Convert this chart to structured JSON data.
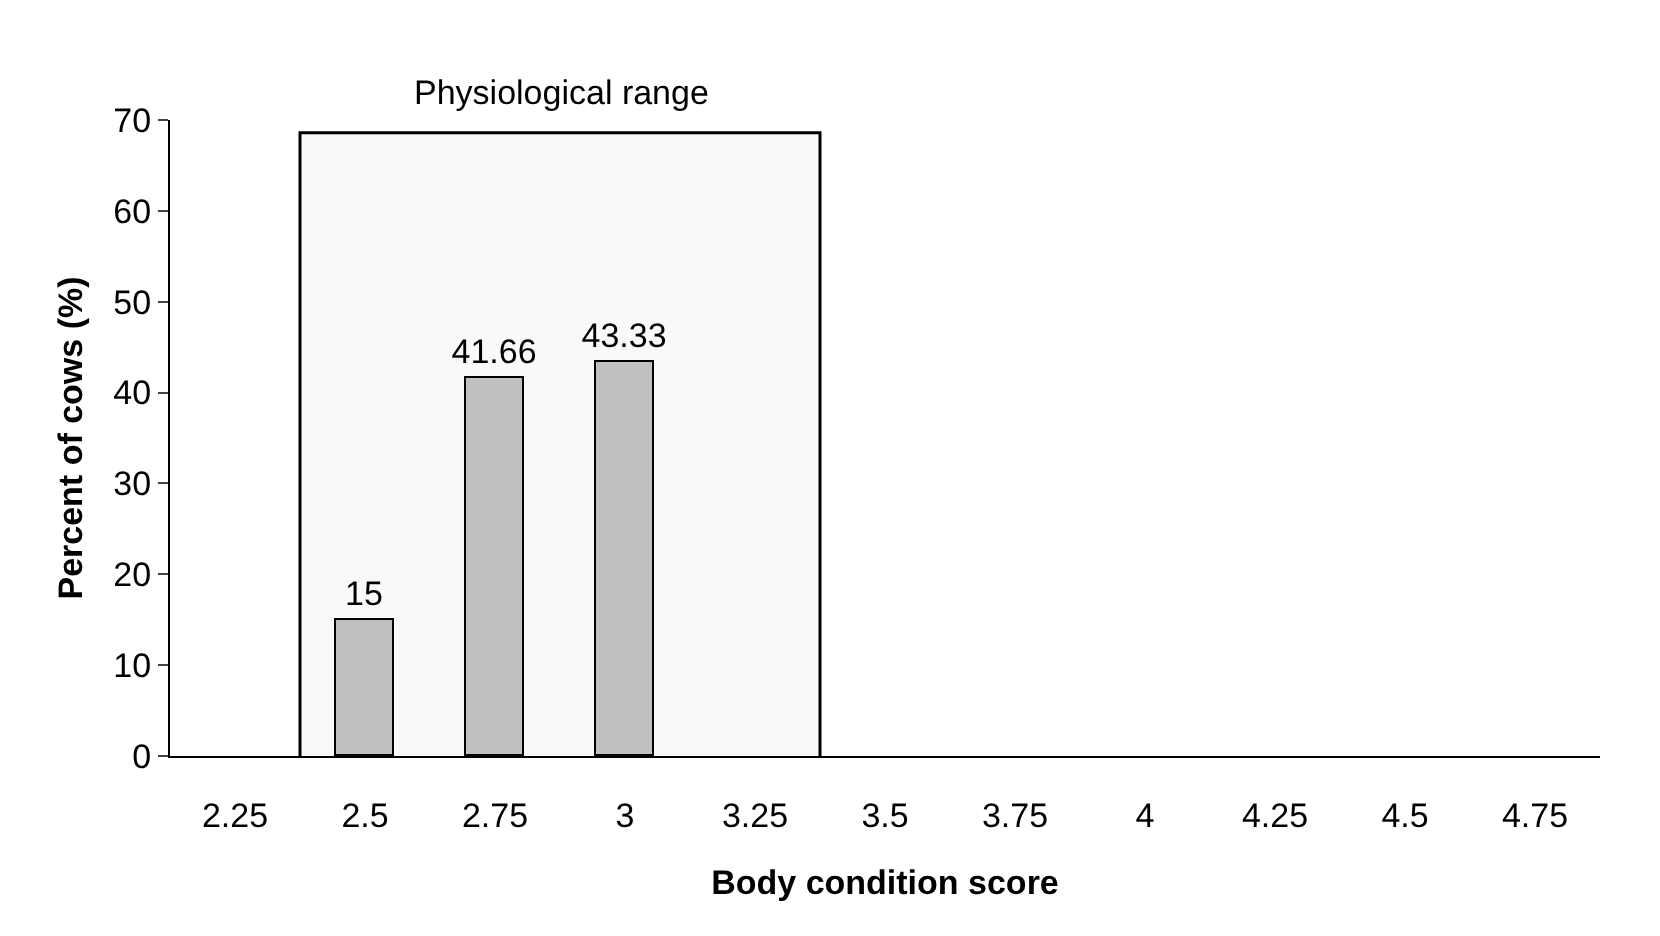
{
  "chart_data": {
    "type": "bar",
    "xlabel": "Body condition score",
    "ylabel": "Percent of cows (%)",
    "x": [
      2.5,
      2.75,
      3
    ],
    "values": [
      15,
      41.66,
      43.33
    ],
    "color": "#c0c0c0",
    "data_labels": true,
    "xlim": [
      2.125,
      4.875
    ],
    "xticks": [
      2.25,
      2.5,
      2.75,
      3,
      3.25,
      3.5,
      3.75,
      4,
      4.25,
      4.5,
      4.75
    ],
    "ylim": [
      0,
      70
    ],
    "yticks": [
      0,
      10,
      20,
      30,
      40,
      50,
      60,
      70
    ],
    "bands": [
      {
        "axis": "x",
        "from": 2.375,
        "to": 3.375,
        "label": "Physiological range",
        "color": "#000000"
      }
    ],
    "grid": false
  }
}
